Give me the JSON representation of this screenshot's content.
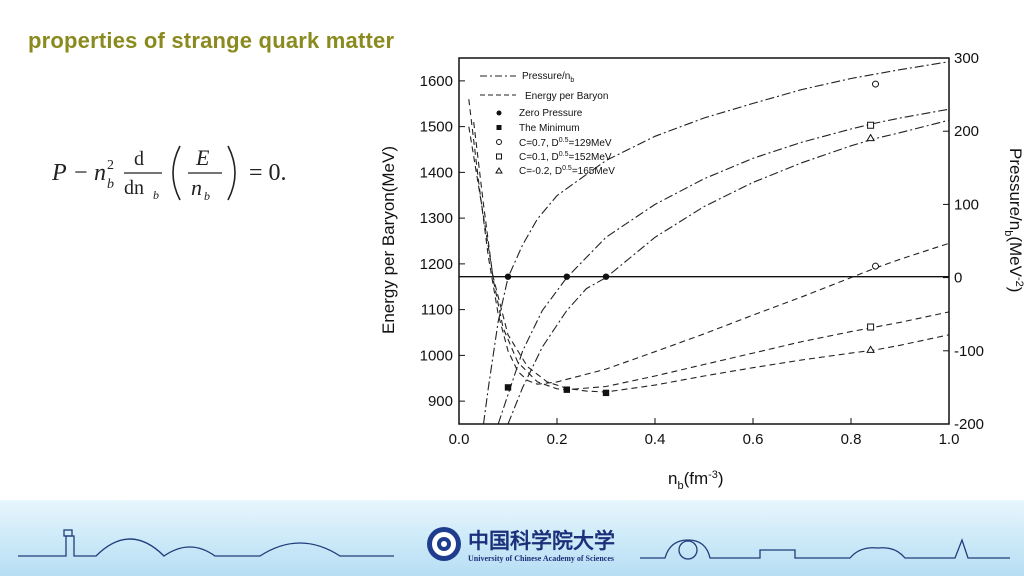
{
  "slide": {
    "title": "properties of strange quark matter"
  },
  "equation": {
    "lhs_P": "P",
    "minus": "−",
    "n": "n",
    "sub_b": "b",
    "sup_2": "2",
    "d_num": "d",
    "d_den": "dn",
    "E": "E",
    "eq": "= 0."
  },
  "chart_data": {
    "type": "line",
    "xlabel_base": "n",
    "xlabel_sub": "b",
    "xlabel_unit": "(fm",
    "xlabel_exp": "-3",
    "xlabel_close": ")",
    "ylabel": "Energy per Baryon(MeV)",
    "y2label_base": "Pressure/n",
    "y2label_sub": "b",
    "y2label_unit": "(MeV",
    "y2label_exp": "-2",
    "y2label_close": ")",
    "xlim": [
      0.0,
      1.0
    ],
    "ylim": [
      850,
      1650
    ],
    "y2lim": [
      -200,
      300
    ],
    "xticks": [
      "0.0",
      "0.2",
      "0.4",
      "0.6",
      "0.8",
      "1.0"
    ],
    "yticks": [
      "900",
      "1000",
      "1100",
      "1200",
      "1300",
      "1400",
      "1500",
      "1600"
    ],
    "y2ticks": [
      "-200",
      "-100",
      "0",
      "100",
      "200",
      "300"
    ],
    "legend": [
      {
        "label": "Pressure/n",
        "sub": "b",
        "style": "dashdot"
      },
      {
        "label": "Energy per Baryon",
        "style": "dash"
      },
      {
        "label": "Zero Pressure",
        "marker": "filled-circle"
      },
      {
        "label": "The Minimum",
        "marker": "filled-square"
      },
      {
        "label_pre": "C=0.7, D",
        "sup": "0.5",
        "label_post": "=129MeV",
        "marker": "open-circle"
      },
      {
        "label_pre": "C=0.1, D",
        "sup": "0.5",
        "label_post": "=152MeV",
        "marker": "open-square"
      },
      {
        "label_pre": "C=-0.2, D",
        "sup": "0.5",
        "label_post": "=165MeV",
        "marker": "open-triangle"
      }
    ],
    "zero_pressure_line_energy": 1172,
    "series": [
      {
        "name": "C=0.7, D0.5=129MeV",
        "marker": "circle",
        "energy_per_baryon": [
          [
            0.02,
            1560
          ],
          [
            0.04,
            1380
          ],
          [
            0.06,
            1215
          ],
          [
            0.08,
            1090
          ],
          [
            0.1,
            1010
          ],
          [
            0.12,
            965
          ],
          [
            0.14,
            945
          ],
          [
            0.16,
            937
          ],
          [
            0.2,
            942
          ],
          [
            0.3,
            970
          ],
          [
            0.4,
            1008
          ],
          [
            0.5,
            1047
          ],
          [
            0.6,
            1088
          ],
          [
            0.7,
            1128
          ],
          [
            0.8,
            1170
          ],
          [
            0.85,
            1191
          ],
          [
            0.9,
            1210
          ],
          [
            1.0,
            1245
          ]
        ],
        "pressure_per_nb": [
          [
            0.05,
            -200
          ],
          [
            0.06,
            -150
          ],
          [
            0.08,
            -60
          ],
          [
            0.1,
            0
          ],
          [
            0.13,
            45
          ],
          [
            0.16,
            80
          ],
          [
            0.2,
            112
          ],
          [
            0.3,
            160
          ],
          [
            0.4,
            193
          ],
          [
            0.5,
            218
          ],
          [
            0.6,
            238
          ],
          [
            0.7,
            257
          ],
          [
            0.8,
            272
          ],
          [
            0.85,
            278
          ],
          [
            0.9,
            284
          ],
          [
            1.0,
            295
          ]
        ]
      },
      {
        "name": "C=0.1, D0.5=152MeV",
        "marker": "square",
        "energy_per_baryon": [
          [
            0.03,
            1510
          ],
          [
            0.05,
            1330
          ],
          [
            0.07,
            1165
          ],
          [
            0.09,
            1060
          ],
          [
            0.12,
            985
          ],
          [
            0.16,
            942
          ],
          [
            0.2,
            927
          ],
          [
            0.22,
            925
          ],
          [
            0.3,
            932
          ],
          [
            0.4,
            955
          ],
          [
            0.5,
            980
          ],
          [
            0.6,
            1005
          ],
          [
            0.7,
            1030
          ],
          [
            0.8,
            1052
          ],
          [
            0.85,
            1062
          ],
          [
            0.9,
            1072
          ],
          [
            1.0,
            1095
          ]
        ],
        "pressure_per_nb": [
          [
            0.08,
            -200
          ],
          [
            0.1,
            -160
          ],
          [
            0.13,
            -100
          ],
          [
            0.17,
            -45
          ],
          [
            0.22,
            0
          ],
          [
            0.3,
            55
          ],
          [
            0.4,
            100
          ],
          [
            0.5,
            135
          ],
          [
            0.6,
            163
          ],
          [
            0.7,
            185
          ],
          [
            0.8,
            203
          ],
          [
            0.85,
            211
          ],
          [
            0.9,
            218
          ],
          [
            1.0,
            230
          ]
        ]
      },
      {
        "name": "C=-0.2, D0.5=165MeV",
        "marker": "triangle",
        "energy_per_baryon": [
          [
            0.02,
            1500
          ],
          [
            0.04,
            1370
          ],
          [
            0.07,
            1170
          ],
          [
            0.1,
            1045
          ],
          [
            0.14,
            975
          ],
          [
            0.18,
            942
          ],
          [
            0.22,
            928
          ],
          [
            0.26,
            922
          ],
          [
            0.3,
            920
          ],
          [
            0.4,
            935
          ],
          [
            0.5,
            955
          ],
          [
            0.6,
            973
          ],
          [
            0.7,
            990
          ],
          [
            0.8,
            1005
          ],
          [
            0.85,
            1012
          ],
          [
            0.9,
            1022
          ],
          [
            1.0,
            1045
          ]
        ],
        "pressure_per_nb": [
          [
            0.1,
            -200
          ],
          [
            0.13,
            -150
          ],
          [
            0.17,
            -95
          ],
          [
            0.22,
            -45
          ],
          [
            0.26,
            -15
          ],
          [
            0.3,
            0
          ],
          [
            0.4,
            55
          ],
          [
            0.5,
            97
          ],
          [
            0.6,
            130
          ],
          [
            0.7,
            157
          ],
          [
            0.8,
            180
          ],
          [
            0.85,
            190
          ],
          [
            0.9,
            198
          ],
          [
            1.0,
            215
          ]
        ]
      }
    ],
    "zero_pressure_points": [
      [
        0.1,
        1172
      ],
      [
        0.22,
        1172
      ],
      [
        0.3,
        1172
      ]
    ],
    "minimum_points": [
      [
        0.1,
        930
      ],
      [
        0.22,
        925
      ],
      [
        0.3,
        918
      ]
    ],
    "marker_points": {
      "circle": [
        [
          0.85,
          1593
        ],
        [
          0.85,
          1195
        ]
      ],
      "square": [
        [
          0.84,
          1503
        ],
        [
          0.84,
          1062
        ]
      ],
      "triangle": [
        [
          0.84,
          1475
        ],
        [
          0.84,
          1012
        ]
      ]
    }
  },
  "footer": {
    "university_en": "University of Chinese Academy of Sciences",
    "university_cn": "中国科学院大学",
    "logo_icon": "ucas-emblem-icon"
  }
}
